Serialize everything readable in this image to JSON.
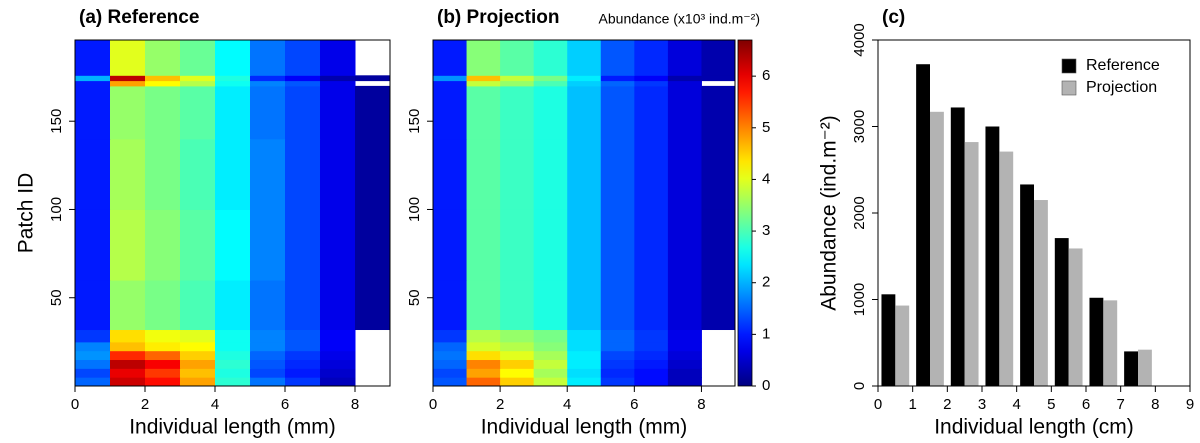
{
  "chart_data": [
    {
      "type": "heatmap",
      "title": "(a) Reference",
      "xlabel": "Individual length (mm)",
      "ylabel": "Patch ID",
      "colormap": "jet",
      "zlim": [
        0,
        6.7
      ],
      "xlim": [
        0,
        9
      ],
      "xticks": [
        0,
        2,
        4,
        6,
        8
      ],
      "ylim": [
        0,
        196
      ],
      "yticks": [
        50,
        100,
        150
      ],
      "x_bins": [
        0,
        1,
        2,
        3,
        4,
        5,
        6,
        7,
        8,
        9
      ],
      "y_bins": [
        0,
        5,
        10,
        15,
        20,
        25,
        32,
        60,
        100,
        140,
        170,
        173,
        176,
        196
      ],
      "z": [
        [
          1.5,
          6.2,
          5.8,
          4.8,
          2.8,
          1.6,
          1.2,
          0.4,
          null
        ],
        [
          1.3,
          6.0,
          5.5,
          4.6,
          2.7,
          1.3,
          1.0,
          0.5,
          null
        ],
        [
          1.6,
          6.3,
          5.9,
          4.8,
          2.8,
          1.4,
          1.1,
          0.6,
          null
        ],
        [
          1.8,
          5.6,
          5.2,
          4.5,
          2.7,
          1.5,
          1.2,
          0.7,
          null
        ],
        [
          1.7,
          4.6,
          4.3,
          4.2,
          2.6,
          1.7,
          1.4,
          0.8,
          null
        ],
        [
          1.2,
          4.4,
          4.1,
          4.0,
          2.6,
          1.7,
          1.4,
          0.8,
          null
        ],
        [
          1.0,
          3.5,
          3.3,
          3.0,
          2.4,
          1.6,
          1.3,
          0.7,
          0.2
        ],
        [
          1.0,
          3.7,
          3.4,
          3.1,
          2.5,
          1.7,
          1.3,
          0.7,
          0.2
        ],
        [
          1.0,
          3.6,
          3.3,
          3.0,
          2.4,
          1.7,
          1.3,
          0.7,
          0.2
        ],
        [
          1.0,
          3.5,
          3.3,
          3.1,
          2.4,
          1.6,
          1.3,
          0.7,
          0.2
        ],
        [
          1.0,
          4.8,
          4.2,
          3.7,
          2.6,
          1.7,
          1.4,
          0.7,
          null
        ],
        [
          2.0,
          6.3,
          4.6,
          4.0,
          2.7,
          1.1,
          0.8,
          0.3,
          0.2
        ],
        [
          1.0,
          4.0,
          3.5,
          3.2,
          2.5,
          1.6,
          1.3,
          0.7,
          null
        ]
      ]
    },
    {
      "type": "heatmap",
      "title": "(b) Projection",
      "xlabel": "Individual length (mm)",
      "colormap": "jet",
      "zlim": [
        0,
        6.7
      ],
      "colorbar": {
        "label": "Abundance (x10³ ind.m⁻²)",
        "ticks": [
          0,
          1,
          2,
          3,
          4,
          5,
          6
        ]
      },
      "xlim": [
        0,
        9
      ],
      "xticks": [
        0,
        2,
        4,
        6,
        8
      ],
      "ylim": [
        0,
        196
      ],
      "yticks": [
        50,
        100,
        150
      ],
      "x_bins": [
        0,
        1,
        2,
        3,
        4,
        5,
        6,
        7,
        8,
        9
      ],
      "y_bins": [
        0,
        5,
        10,
        15,
        20,
        25,
        32,
        60,
        100,
        140,
        170,
        173,
        176,
        196
      ],
      "z": [
        [
          1.4,
          5.2,
          4.5,
          3.8,
          2.4,
          1.2,
          0.9,
          0.4,
          null
        ],
        [
          1.3,
          4.8,
          4.2,
          3.6,
          2.3,
          1.1,
          0.9,
          0.4,
          null
        ],
        [
          1.5,
          5.0,
          4.5,
          3.8,
          2.4,
          1.2,
          1.0,
          0.5,
          null
        ],
        [
          1.6,
          4.4,
          4.0,
          3.6,
          2.4,
          1.3,
          1.1,
          0.6,
          null
        ],
        [
          1.5,
          3.9,
          3.7,
          3.4,
          2.3,
          1.5,
          1.2,
          0.7,
          null
        ],
        [
          1.2,
          3.7,
          3.5,
          3.3,
          2.3,
          1.5,
          1.2,
          0.7,
          null
        ],
        [
          1.0,
          3.1,
          2.9,
          2.7,
          2.1,
          1.4,
          1.1,
          0.6,
          0.3
        ],
        [
          1.0,
          3.1,
          2.9,
          2.7,
          2.1,
          1.4,
          1.1,
          0.6,
          0.3
        ],
        [
          1.0,
          3.1,
          2.9,
          2.7,
          2.1,
          1.4,
          1.1,
          0.6,
          0.3
        ],
        [
          1.0,
          3.1,
          2.9,
          2.7,
          2.1,
          1.4,
          1.1,
          0.6,
          0.3
        ],
        [
          1.0,
          3.8,
          3.5,
          3.0,
          2.2,
          1.5,
          1.2,
          0.6,
          null
        ],
        [
          1.8,
          4.6,
          3.8,
          3.3,
          2.4,
          1.0,
          0.8,
          0.3,
          0.3
        ],
        [
          1.0,
          3.4,
          3.1,
          2.8,
          2.2,
          1.4,
          1.1,
          0.6,
          0.3
        ]
      ]
    },
    {
      "type": "bar",
      "title": "(c)",
      "xlabel": "Individual length (cm)",
      "ylabel": "Abundance (ind.m⁻²)",
      "x": [
        0.5,
        1.5,
        2.5,
        3.5,
        4.5,
        5.5,
        6.5,
        7.5,
        8.5
      ],
      "xlim": [
        0,
        9
      ],
      "xticks": [
        0,
        1,
        2,
        3,
        4,
        5,
        6,
        7,
        8,
        9
      ],
      "ylim": [
        0,
        4000
      ],
      "yticks": [
        0,
        1000,
        2000,
        3000,
        4000
      ],
      "legend": "top-right",
      "series": [
        {
          "name": "Reference",
          "color": "#000000",
          "values": [
            1060,
            3720,
            3220,
            3000,
            2330,
            1710,
            1020,
            400,
            5
          ]
        },
        {
          "name": "Projection",
          "color": "#b3b3b3",
          "values": [
            930,
            3170,
            2820,
            2710,
            2150,
            1590,
            990,
            420,
            5
          ]
        }
      ]
    }
  ]
}
